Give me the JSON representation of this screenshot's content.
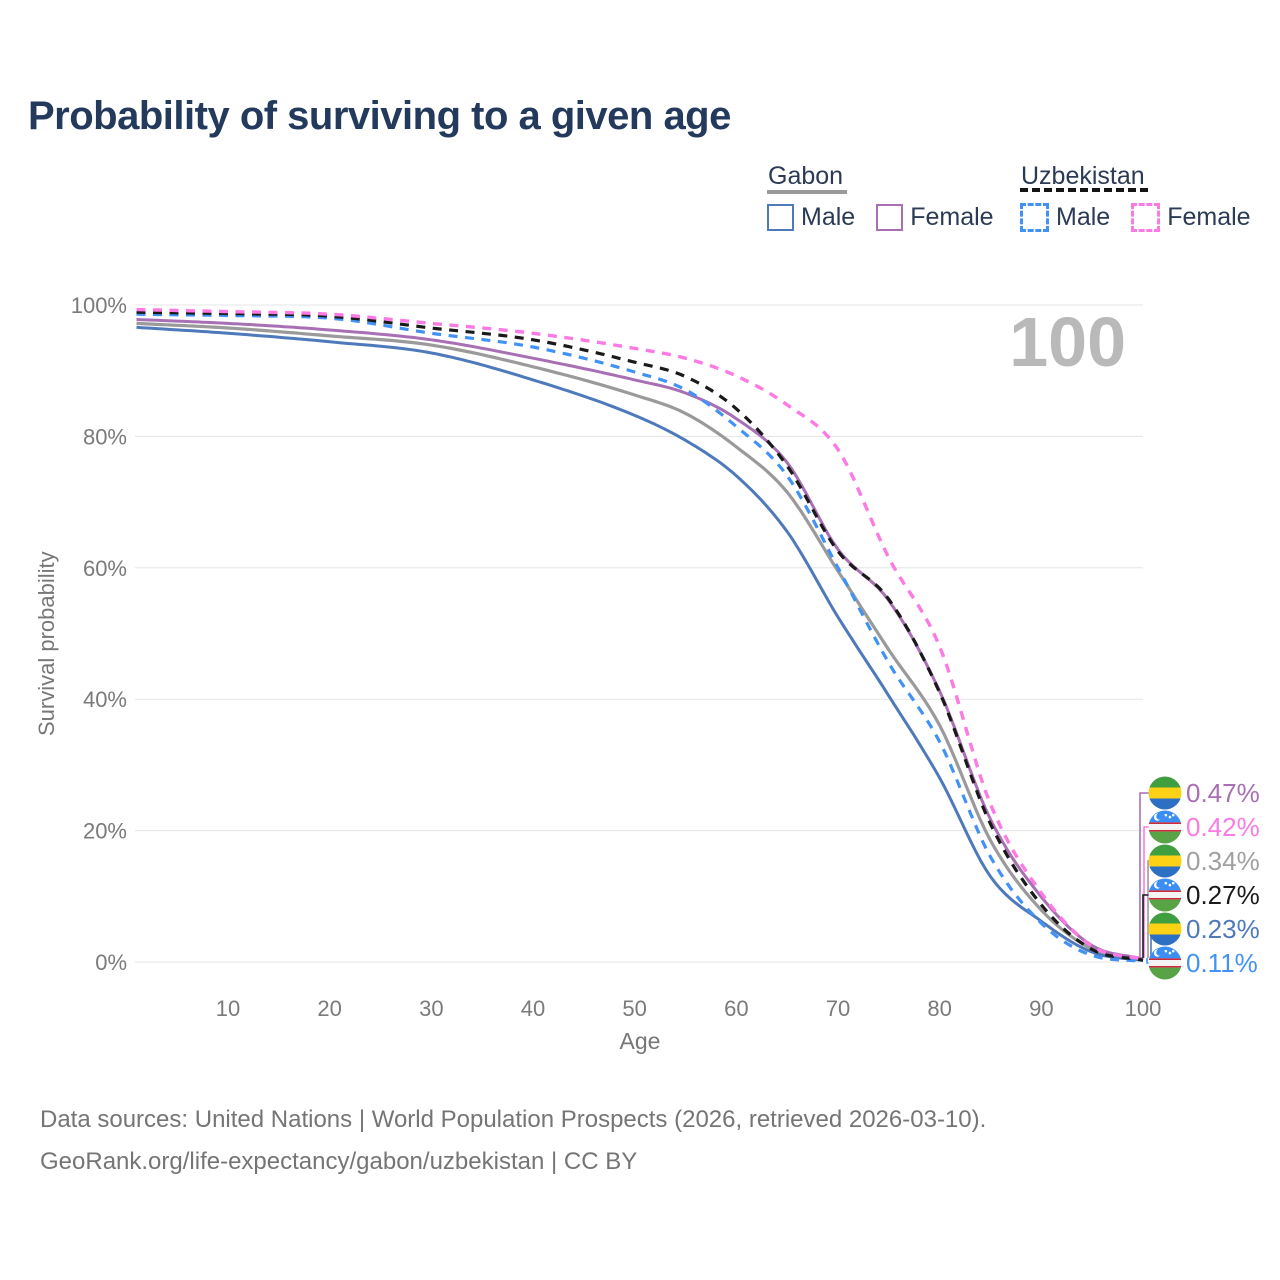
{
  "title": "Probability of surviving to a given age",
  "watermark_age": "100",
  "legend": {
    "gabon": {
      "label": "Gabon",
      "male_label": "Male",
      "female_label": "Female"
    },
    "uzbekistan": {
      "label": "Uzbekistan",
      "male_label": "Male",
      "female_label": "Female"
    }
  },
  "colors": {
    "title_text": "#233a5c",
    "legend_text": "#2b3b55",
    "axis_text": "#7a7a7a",
    "gridline": "#e5e5e5",
    "watermark": "#b9b9b9",
    "footer_text": "#757575",
    "gabon_underline": "#9a9a9a",
    "uzbekistan_underline": "#141414"
  },
  "chart_data": {
    "type": "line",
    "title": "Probability of surviving to a given age",
    "xlabel": "Age",
    "ylabel": "Survival probability",
    "xlim": [
      1,
      100
    ],
    "ylim": [
      0,
      100
    ],
    "grid": "horizontal-only",
    "legend_position": "top-right",
    "x_ticks": [
      10,
      20,
      30,
      40,
      50,
      60,
      70,
      80,
      90,
      100
    ],
    "y_ticks": [
      0,
      20,
      40,
      60,
      80,
      100
    ],
    "y_tick_labels": [
      "0%",
      "20%",
      "40%",
      "60%",
      "80%",
      "100%"
    ],
    "ages": [
      1,
      10,
      20,
      30,
      40,
      50,
      55,
      60,
      65,
      70,
      75,
      80,
      85,
      90,
      95,
      100
    ],
    "series": [
      {
        "key": "gabon_all",
        "name": "Gabon (both sexes)",
        "country": "Gabon",
        "style": "solid",
        "color": "#9a9a9a",
        "width": 3.2,
        "values": [
          97.2,
          96.5,
          95.3,
          93.9,
          90.6,
          86.3,
          83.5,
          78.4,
          71.5,
          59.5,
          47.5,
          36.0,
          18.5,
          7.9,
          2.0,
          0.34
        ],
        "end_label": "0.34%"
      },
      {
        "key": "gabon_male",
        "name": "Gabon Male",
        "country": "Gabon",
        "style": "solid",
        "color": "#4e79bb",
        "width": 3,
        "values": [
          96.6,
          95.7,
          94.4,
          92.7,
          88.6,
          83.2,
          79.4,
          74.0,
          65.5,
          52.5,
          40.5,
          28.0,
          13.0,
          6.2,
          1.5,
          0.23
        ],
        "end_label": "0.23%"
      },
      {
        "key": "gabon_female",
        "name": "Gabon Female",
        "country": "Gabon",
        "style": "solid",
        "color": "#a86fb4",
        "width": 3,
        "values": [
          97.8,
          97.2,
          96.2,
          94.7,
          91.9,
          88.6,
          86.6,
          82.7,
          76.0,
          62.8,
          55.0,
          41.2,
          21.7,
          9.9,
          2.5,
          0.47
        ],
        "end_label": "0.47%"
      },
      {
        "key": "uzbekistan_male",
        "name": "Uzbekistan Male",
        "country": "Uzbekistan",
        "style": "dashed",
        "color": "#4292f5",
        "width": 3.2,
        "values": [
          98.6,
          98.4,
          98.0,
          95.7,
          93.6,
          89.8,
          87.1,
          81.5,
          74.0,
          60.0,
          45.5,
          33.5,
          16.0,
          5.9,
          1.0,
          0.11
        ],
        "end_label": "0.11%"
      },
      {
        "key": "uzbekistan_all",
        "name": "Uzbekistan (both sexes)",
        "country": "Uzbekistan",
        "style": "dashed",
        "color": "#1a1a1a",
        "width": 3.2,
        "values": [
          98.9,
          98.7,
          98.3,
          96.5,
          94.7,
          91.3,
          89.1,
          84.2,
          75.5,
          62.5,
          55.2,
          41.0,
          21.0,
          8.7,
          1.9,
          0.27
        ],
        "end_label": "0.27%"
      },
      {
        "key": "uzbekistan_female",
        "name": "Uzbekistan Female",
        "country": "Uzbekistan",
        "style": "dashed",
        "color": "#fb7ae3",
        "width": 3.4,
        "values": [
          99.3,
          99.0,
          98.6,
          97.2,
          95.7,
          93.4,
          91.9,
          89.2,
          84.8,
          78.0,
          61.5,
          48.0,
          24.0,
          10.5,
          2.4,
          0.42
        ],
        "end_label": "0.42%"
      }
    ],
    "end_labels": [
      {
        "series_key": "gabon_female",
        "flag": "gabon",
        "value": "0.47%",
        "color": "#a86fb4"
      },
      {
        "series_key": "uzbekistan_female",
        "flag": "uzbekistan",
        "value": "0.42%",
        "color": "#fb7ae3"
      },
      {
        "series_key": "gabon_all",
        "flag": "gabon",
        "value": "0.34%",
        "color": "#a0a0a0"
      },
      {
        "series_key": "uzbekistan_all",
        "flag": "uzbekistan",
        "value": "0.27%",
        "color": "#1a1a1a"
      },
      {
        "series_key": "gabon_male",
        "flag": "gabon",
        "value": "0.23%",
        "color": "#4e79bb"
      },
      {
        "series_key": "uzbekistan_male",
        "flag": "uzbekistan",
        "value": "0.11%",
        "color": "#4292f5"
      }
    ]
  },
  "footer": {
    "line1": "Data sources: United Nations | World Population Prospects (2026, retrieved 2026-03-10).",
    "line2": "GeoRank.org/life-expectancy/gabon/uzbekistan | CC BY"
  }
}
